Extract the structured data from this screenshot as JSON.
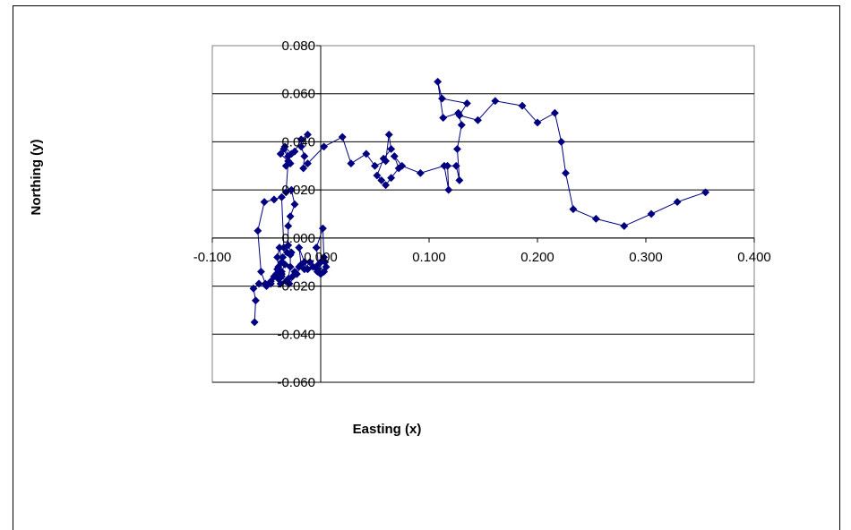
{
  "chart_data": {
    "type": "scatter",
    "title": "",
    "xlabel": "Easting (x)",
    "ylabel": "Northing (y)",
    "xlim": [
      -0.1,
      0.4
    ],
    "ylim": [
      -0.06,
      0.08
    ],
    "x_ticks": [
      "-0.100",
      "0.000",
      "0.100",
      "0.200",
      "0.300",
      "0.400"
    ],
    "y_ticks": [
      "-0.060",
      "-0.040",
      "-0.020",
      "0.000",
      "0.020",
      "0.040",
      "0.060",
      "0.080"
    ],
    "grid": "horizontal major gridlines",
    "legend": "none",
    "lines_connect_points": true,
    "colors": {
      "series": "#000080",
      "grid": "#000000",
      "plot_border": "#808080"
    },
    "series": [
      {
        "points": [
          [
            0.355,
            0.019
          ],
          [
            0.329,
            0.015
          ],
          [
            0.305,
            0.01
          ],
          [
            0.28,
            0.005
          ],
          [
            0.254,
            0.008
          ],
          [
            0.233,
            0.012
          ],
          [
            0.226,
            0.027
          ],
          [
            0.222,
            0.04
          ],
          [
            0.216,
            0.052
          ],
          [
            0.2,
            0.048
          ],
          [
            0.186,
            0.055
          ],
          [
            0.161,
            0.057
          ],
          [
            0.145,
            0.049
          ],
          [
            0.128,
            0.051
          ],
          [
            0.135,
            0.056
          ],
          [
            0.112,
            0.058
          ],
          [
            0.108,
            0.065
          ],
          [
            0.113,
            0.05
          ],
          [
            0.127,
            0.052
          ],
          [
            0.13,
            0.047
          ],
          [
            0.126,
            0.037
          ],
          [
            0.128,
            0.024
          ],
          [
            0.125,
            0.03
          ],
          [
            0.117,
            0.03
          ],
          [
            0.118,
            0.02
          ],
          [
            0.114,
            0.03
          ],
          [
            0.092,
            0.027
          ],
          [
            0.075,
            0.03
          ],
          [
            0.068,
            0.034
          ],
          [
            0.072,
            0.029
          ],
          [
            0.065,
            0.025
          ],
          [
            0.06,
            0.022
          ],
          [
            0.056,
            0.024
          ],
          [
            0.052,
            0.026
          ],
          [
            0.058,
            0.033
          ],
          [
            0.065,
            0.037
          ],
          [
            0.063,
            0.043
          ],
          [
            0.06,
            0.032
          ],
          [
            0.05,
            0.03
          ],
          [
            0.042,
            0.035
          ],
          [
            0.028,
            0.031
          ],
          [
            0.02,
            0.042
          ],
          [
            0.003,
            0.038
          ],
          [
            -0.012,
            0.031
          ],
          [
            -0.016,
            0.029
          ],
          [
            -0.015,
            0.034
          ],
          [
            -0.018,
            0.038
          ],
          [
            -0.012,
            0.043
          ],
          [
            -0.018,
            0.041
          ],
          [
            -0.024,
            0.036
          ],
          [
            -0.027,
            0.035
          ],
          [
            -0.033,
            0.038
          ],
          [
            -0.03,
            0.034
          ],
          [
            -0.032,
            0.03
          ],
          [
            -0.028,
            0.031
          ],
          [
            -0.034,
            0.037
          ],
          [
            -0.037,
            0.035
          ],
          [
            -0.03,
            0.032
          ],
          [
            -0.032,
            0.019
          ],
          [
            -0.027,
            0.02
          ],
          [
            -0.024,
            0.014
          ],
          [
            -0.028,
            0.009
          ],
          [
            -0.03,
            0.005
          ],
          [
            -0.03,
            -0.003
          ],
          [
            -0.027,
            -0.006
          ],
          [
            -0.034,
            -0.004
          ],
          [
            -0.036,
            0.017
          ],
          [
            -0.043,
            0.016
          ],
          [
            -0.052,
            0.015
          ],
          [
            -0.058,
            0.003
          ],
          [
            -0.055,
            -0.014
          ],
          [
            -0.051,
            -0.019
          ],
          [
            -0.046,
            -0.019
          ],
          [
            -0.041,
            -0.015
          ],
          [
            -0.039,
            -0.012
          ],
          [
            -0.04,
            -0.008
          ],
          [
            -0.038,
            -0.004
          ],
          [
            -0.036,
            -0.01
          ],
          [
            -0.04,
            -0.013
          ],
          [
            -0.036,
            -0.015
          ],
          [
            -0.037,
            -0.019
          ],
          [
            -0.036,
            -0.014
          ],
          [
            -0.033,
            -0.011
          ],
          [
            -0.035,
            -0.008
          ],
          [
            -0.031,
            -0.006
          ],
          [
            -0.028,
            -0.007
          ],
          [
            -0.028,
            -0.012
          ],
          [
            -0.03,
            -0.017
          ],
          [
            -0.029,
            -0.019
          ],
          [
            -0.022,
            -0.015
          ],
          [
            -0.018,
            -0.011
          ],
          [
            -0.02,
            -0.004
          ],
          [
            -0.015,
            -0.01
          ],
          [
            -0.012,
            -0.013
          ],
          [
            -0.007,
            -0.012
          ],
          [
            -0.003,
            -0.014
          ],
          [
            0.0,
            -0.015
          ],
          [
            0.003,
            -0.014
          ],
          [
            -0.002,
            -0.011
          ],
          [
            -0.004,
            -0.004
          ],
          [
            0.002,
            0.004
          ],
          [
            0.003,
            -0.008
          ],
          [
            0.005,
            -0.012
          ],
          [
            0.004,
            -0.01
          ],
          [
            0.0,
            -0.01
          ],
          [
            -0.003,
            -0.013
          ],
          [
            -0.01,
            -0.01
          ],
          [
            -0.015,
            -0.013
          ],
          [
            -0.02,
            -0.012
          ],
          [
            -0.024,
            -0.014
          ],
          [
            -0.026,
            -0.016
          ],
          [
            -0.032,
            -0.018
          ],
          [
            -0.036,
            -0.016
          ],
          [
            -0.039,
            -0.017
          ],
          [
            -0.043,
            -0.016
          ],
          [
            -0.046,
            -0.018
          ],
          [
            -0.05,
            -0.02
          ],
          [
            -0.057,
            -0.019
          ],
          [
            -0.062,
            -0.021
          ],
          [
            -0.06,
            -0.026
          ],
          [
            -0.061,
            -0.035
          ]
        ]
      }
    ]
  }
}
